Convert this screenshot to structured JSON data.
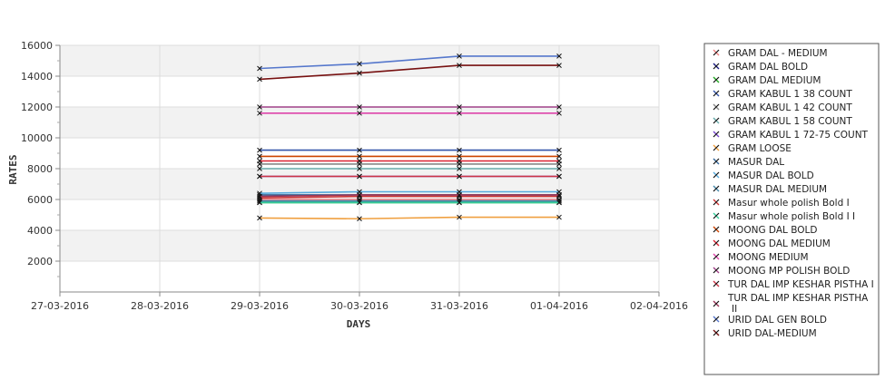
{
  "chart_data": {
    "type": "line",
    "title": "",
    "xlabel": "DAYS",
    "ylabel": "RATES",
    "x_ticks": [
      "27-03-2016",
      "28-03-2016",
      "29-03-2016",
      "30-03-2016",
      "31-03-2016",
      "01-04-2016",
      "02-04-2016"
    ],
    "x": [
      "29-03-2016",
      "30-03-2016",
      "31-03-2016",
      "01-04-2016"
    ],
    "ylim": [
      0,
      16000
    ],
    "y_ticks": [
      2000,
      4000,
      6000,
      8000,
      10000,
      12000,
      14000,
      16000
    ],
    "grid": "horizontal bands",
    "legend_position": "right",
    "series": [
      {
        "name": "GRAM DAL - MEDIUM",
        "color": "#f08080",
        "values": [
          6000,
          6000,
          6000,
          6000
        ]
      },
      {
        "name": "GRAM DAL BOLD",
        "color": "#1a1a80",
        "values": [
          5900,
          5900,
          5900,
          5900
        ]
      },
      {
        "name": "GRAM DAL MEDIUM",
        "color": "#22aa22",
        "values": [
          5800,
          5800,
          5800,
          5800
        ]
      },
      {
        "name": "GRAM KABUL 1 38 COUNT",
        "color": "#3355aa",
        "values": [
          9200,
          9200,
          9200,
          9200
        ]
      },
      {
        "name": "GRAM KABUL 1 42 COUNT",
        "color": "#888888",
        "values": [
          8300,
          8300,
          8300,
          8300
        ]
      },
      {
        "name": "GRAM KABUL 1 58 COUNT",
        "color": "#66aaaa",
        "values": [
          8000,
          8000,
          8000,
          8000
        ]
      },
      {
        "name": "GRAM KABUL 1 72-75 COUNT",
        "color": "#7744cc",
        "values": [
          7500,
          7500,
          7500,
          7500
        ]
      },
      {
        "name": "GRAM LOOSE",
        "color": "#f0a040",
        "values": [
          4800,
          4750,
          4850,
          4850
        ]
      },
      {
        "name": "MASUR DAL",
        "color": "#336699",
        "values": [
          6300,
          6300,
          6300,
          6300
        ]
      },
      {
        "name": "MASUR DAL BOLD",
        "color": "#55aadd",
        "values": [
          6400,
          6500,
          6500,
          6500
        ]
      },
      {
        "name": "MASUR DAL MEDIUM",
        "color": "#4488aa",
        "values": [
          5900,
          5900,
          5900,
          5900
        ]
      },
      {
        "name": "Masur whole polish Bold I",
        "color": "#cc3333",
        "values": [
          6100,
          6200,
          6200,
          6200
        ]
      },
      {
        "name": "Masur whole polish Bold I I",
        "color": "#33cc99",
        "values": [
          5800,
          5800,
          5800,
          5800
        ]
      },
      {
        "name": "MOONG DAL BOLD",
        "color": "#cc4400",
        "values": [
          8800,
          8800,
          8800,
          8800
        ]
      },
      {
        "name": "MOONG DAL MEDIUM",
        "color": "#dd2233",
        "values": [
          8500,
          8500,
          8500,
          8500
        ]
      },
      {
        "name": "MOONG MEDIUM",
        "color": "#dd44aa",
        "values": [
          11600,
          11600,
          11600,
          11600
        ]
      },
      {
        "name": "MOONG MP POLISH BOLD",
        "color": "#a04088",
        "values": [
          12000,
          12000,
          12000,
          12000
        ]
      },
      {
        "name": "TUR DAL IMP KESHAR PISTHA I",
        "color": "#cc3344",
        "values": [
          7500,
          7500,
          7500,
          7500
        ]
      },
      {
        "name": "TUR DAL IMP KESHAR PISTHA II",
        "color": "#993355",
        "values": [
          6200,
          6300,
          6300,
          6300
        ]
      },
      {
        "name": "URID DAL GEN BOLD",
        "color": "#5577cc",
        "values": [
          14500,
          14800,
          15300,
          15300
        ]
      },
      {
        "name": "URID DAL-MEDIUM",
        "color": "#771111",
        "values": [
          13800,
          14200,
          14700,
          14700
        ]
      }
    ]
  }
}
